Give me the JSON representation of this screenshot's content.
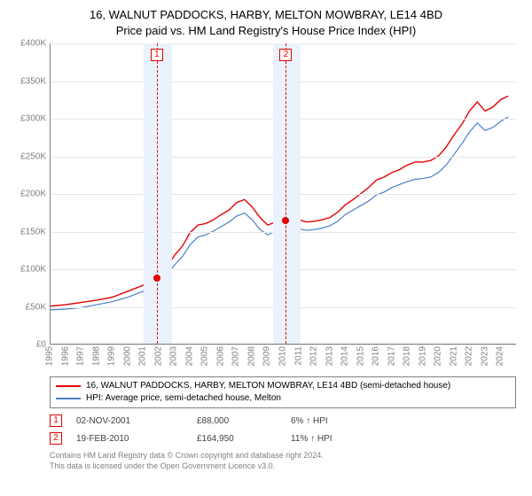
{
  "title": {
    "line1": "16, WALNUT PADDOCKS, HARBY, MELTON MOWBRAY, LE14 4BD",
    "line2": "Price paid vs. HM Land Registry's House Price Index (HPI)"
  },
  "chart": {
    "type": "line",
    "background_color": "#ffffff",
    "grid_color": "#e6e6e6",
    "axis_color": "#808080",
    "tick_font_size": 10,
    "tick_color": "#808080",
    "ylim": [
      0,
      400000
    ],
    "ytick_step": 50000,
    "y_tick_labels": [
      "£0",
      "£50K",
      "£100K",
      "£150K",
      "£200K",
      "£250K",
      "£300K",
      "£350K",
      "£400K"
    ],
    "xlim": [
      1995,
      2025
    ],
    "x_tick_labels": [
      "1995",
      "1996",
      "1997",
      "1998",
      "1999",
      "2000",
      "2001",
      "2002",
      "2003",
      "2004",
      "2005",
      "2006",
      "2007",
      "2008",
      "2009",
      "2010",
      "2011",
      "2012",
      "2013",
      "2014",
      "2015",
      "2016",
      "2017",
      "2018",
      "2019",
      "2020",
      "2021",
      "2022",
      "2023",
      "2024"
    ],
    "x_tick_rotation": -90,
    "highlight_bands": [
      {
        "x_start": 2001.0,
        "x_end": 2002.8,
        "color": "#eaf2fb"
      },
      {
        "x_start": 2009.3,
        "x_end": 2011.1,
        "color": "#eaf2fb"
      }
    ],
    "vlines": [
      {
        "x": 2001.84,
        "color": "#e60000",
        "dash": true
      },
      {
        "x": 2010.14,
        "color": "#e60000",
        "dash": true
      }
    ],
    "flags": [
      {
        "n": "1",
        "x": 2001.84
      },
      {
        "n": "2",
        "x": 2010.14
      }
    ],
    "markers": [
      {
        "x": 2001.84,
        "y": 88000,
        "color": "#e60000"
      },
      {
        "x": 2010.14,
        "y": 164950,
        "color": "#e60000"
      }
    ],
    "series": [
      {
        "name": "price_paid",
        "color": "#e60000",
        "line_width": 1.4,
        "points": [
          [
            1995,
            50000
          ],
          [
            1996,
            52000
          ],
          [
            1997,
            55000
          ],
          [
            1998,
            58000
          ],
          [
            1999,
            62000
          ],
          [
            2000,
            70000
          ],
          [
            2001,
            78000
          ],
          [
            2001.84,
            88000
          ],
          [
            2002.5,
            102000
          ],
          [
            2003,
            118000
          ],
          [
            2003.5,
            130000
          ],
          [
            2004,
            148000
          ],
          [
            2004.5,
            158000
          ],
          [
            2005,
            160000
          ],
          [
            2005.5,
            165000
          ],
          [
            2006,
            172000
          ],
          [
            2006.5,
            178000
          ],
          [
            2007,
            188000
          ],
          [
            2007.5,
            192000
          ],
          [
            2008,
            182000
          ],
          [
            2008.5,
            168000
          ],
          [
            2009,
            158000
          ],
          [
            2009.5,
            162000
          ],
          [
            2010.14,
            164950
          ],
          [
            2010.5,
            168000
          ],
          [
            2011,
            165000
          ],
          [
            2011.5,
            162000
          ],
          [
            2012,
            163000
          ],
          [
            2012.5,
            165000
          ],
          [
            2013,
            168000
          ],
          [
            2013.5,
            175000
          ],
          [
            2014,
            185000
          ],
          [
            2014.5,
            192000
          ],
          [
            2015,
            200000
          ],
          [
            2015.5,
            208000
          ],
          [
            2016,
            218000
          ],
          [
            2016.5,
            222000
          ],
          [
            2017,
            228000
          ],
          [
            2017.5,
            232000
          ],
          [
            2018,
            238000
          ],
          [
            2018.5,
            242000
          ],
          [
            2019,
            242000
          ],
          [
            2019.5,
            244000
          ],
          [
            2020,
            250000
          ],
          [
            2020.5,
            262000
          ],
          [
            2021,
            278000
          ],
          [
            2021.5,
            292000
          ],
          [
            2022,
            310000
          ],
          [
            2022.5,
            322000
          ],
          [
            2023,
            310000
          ],
          [
            2023.5,
            315000
          ],
          [
            2024,
            325000
          ],
          [
            2024.5,
            330000
          ]
        ]
      },
      {
        "name": "hpi",
        "color": "#4a7fc9",
        "line_width": 1.2,
        "points": [
          [
            1995,
            45000
          ],
          [
            1996,
            46000
          ],
          [
            1997,
            48000
          ],
          [
            1998,
            52000
          ],
          [
            1999,
            56000
          ],
          [
            2000,
            62000
          ],
          [
            2001,
            70000
          ],
          [
            2002,
            82000
          ],
          [
            2002.5,
            92000
          ],
          [
            2003,
            105000
          ],
          [
            2003.5,
            116000
          ],
          [
            2004,
            132000
          ],
          [
            2004.5,
            142000
          ],
          [
            2005,
            145000
          ],
          [
            2005.5,
            150000
          ],
          [
            2006,
            156000
          ],
          [
            2006.5,
            162000
          ],
          [
            2007,
            170000
          ],
          [
            2007.5,
            174000
          ],
          [
            2008,
            165000
          ],
          [
            2008.5,
            152000
          ],
          [
            2009,
            145000
          ],
          [
            2009.5,
            150000
          ],
          [
            2010,
            154000
          ],
          [
            2010.5,
            156000
          ],
          [
            2011,
            153000
          ],
          [
            2011.5,
            151000
          ],
          [
            2012,
            152000
          ],
          [
            2012.5,
            154000
          ],
          [
            2013,
            157000
          ],
          [
            2013.5,
            163000
          ],
          [
            2014,
            172000
          ],
          [
            2014.5,
            178000
          ],
          [
            2015,
            184000
          ],
          [
            2015.5,
            190000
          ],
          [
            2016,
            198000
          ],
          [
            2016.5,
            202000
          ],
          [
            2017,
            208000
          ],
          [
            2017.5,
            212000
          ],
          [
            2018,
            216000
          ],
          [
            2018.5,
            219000
          ],
          [
            2019,
            220000
          ],
          [
            2019.5,
            222000
          ],
          [
            2020,
            228000
          ],
          [
            2020.5,
            238000
          ],
          [
            2021,
            252000
          ],
          [
            2021.5,
            266000
          ],
          [
            2022,
            282000
          ],
          [
            2022.5,
            294000
          ],
          [
            2023,
            284000
          ],
          [
            2023.5,
            288000
          ],
          [
            2024,
            296000
          ],
          [
            2024.5,
            302000
          ]
        ]
      }
    ]
  },
  "legend": {
    "border_color": "#808080",
    "font_size": 10,
    "items": [
      {
        "color": "#e60000",
        "label": "16, WALNUT PADDOCKS, HARBY, MELTON MOWBRAY, LE14 4BD (semi-detached house)"
      },
      {
        "color": "#4a7fc9",
        "label": "HPI: Average price, semi-detached house, Melton"
      }
    ]
  },
  "transactions": [
    {
      "n": "1",
      "date": "02-NOV-2001",
      "price": "£88,000",
      "pct": "6% ↑ HPI"
    },
    {
      "n": "2",
      "date": "19-FEB-2010",
      "price": "£164,950",
      "pct": "11% ↑ HPI"
    }
  ],
  "footer": {
    "line1": "Contains HM Land Registry data © Crown copyright and database right 2024.",
    "line2": "This data is licensed under the Open Government Licence v3.0."
  }
}
